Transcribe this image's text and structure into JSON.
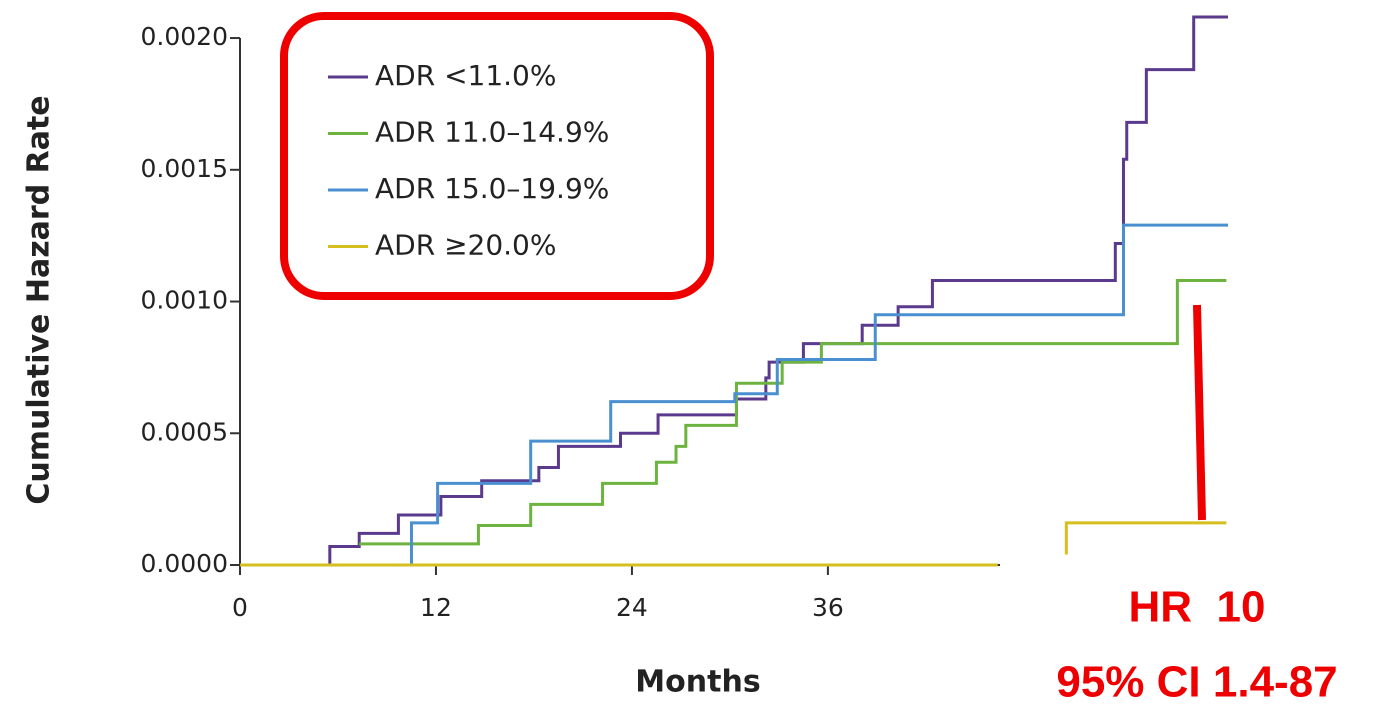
{
  "chart_data": {
    "type": "step-line",
    "y_label": "Cumulative Hazard Rate",
    "x_label": "Months",
    "xlim": [
      0,
      60.5
    ],
    "xticks": [
      0,
      12,
      24,
      36
    ],
    "ylim": [
      0,
      0.0021
    ],
    "yticks": [
      {
        "value": 0,
        "label": "0.0000"
      },
      {
        "value": 0.0005,
        "label": "0.0005"
      },
      {
        "value": 0.001,
        "label": "0.0010"
      },
      {
        "value": 0.0015,
        "label": "0.0015"
      },
      {
        "value": 0.002,
        "label": "0.0020"
      }
    ],
    "series": [
      {
        "name": "ADR <11.0%",
        "color": "#5b3a8e",
        "x": [
          0,
          5.5,
          7.3,
          9.7,
          12.3,
          14.8,
          18.3,
          19.5,
          23.3,
          25.6,
          30.4,
          32.2,
          32.4,
          34.5,
          38.1,
          40.3,
          42.4,
          53.6,
          54.1,
          54.3,
          55.5,
          58.4,
          60.5
        ],
        "values": [
          0,
          7e-05,
          0.00012,
          0.00019,
          0.00026,
          0.00032,
          0.00037,
          0.00045,
          0.0005,
          0.00057,
          0.00063,
          0.00071,
          0.00077,
          0.00084,
          0.00091,
          0.00098,
          0.00108,
          0.00122,
          0.00154,
          0.00168,
          0.00188,
          0.00208,
          0.00208
        ]
      },
      {
        "name": "ADR 11.0–14.9%",
        "color": "#6db33f",
        "x": [
          7.3,
          14.6,
          17.8,
          22.2,
          25.5,
          26.7,
          27.3,
          30.4,
          33.2,
          35.6,
          57.4,
          60.4
        ],
        "values": [
          8e-05,
          0.00015,
          0.00023,
          0.00031,
          0.00039,
          0.00045,
          0.00053,
          0.00069,
          0.00077,
          0.00084,
          0.00108,
          0.00108
        ]
      },
      {
        "name": "ADR 15.0–19.9%",
        "color": "#4a8fcf",
        "x": [
          10.5,
          10.5,
          12.1,
          17.8,
          22.7,
          30.3,
          32.9,
          38.9,
          54.1,
          60.5
        ],
        "values": [
          0,
          0.00016,
          0.00031,
          0.00047,
          0.00062,
          0.00065,
          0.00078,
          0.00095,
          0.00129,
          0.00129
        ]
      },
      {
        "name": "ADR ≥20.0%",
        "color": "#d4bf1e",
        "x": [
          0,
          46.4,
          48,
          50.6,
          50.6,
          60.4
        ],
        "values": [
          0,
          0,
          null,
          4e-05,
          0.00016,
          0.00016
        ]
      }
    ],
    "annotations": [
      "HR  10",
      "95% CI 1.4-87"
    ]
  }
}
